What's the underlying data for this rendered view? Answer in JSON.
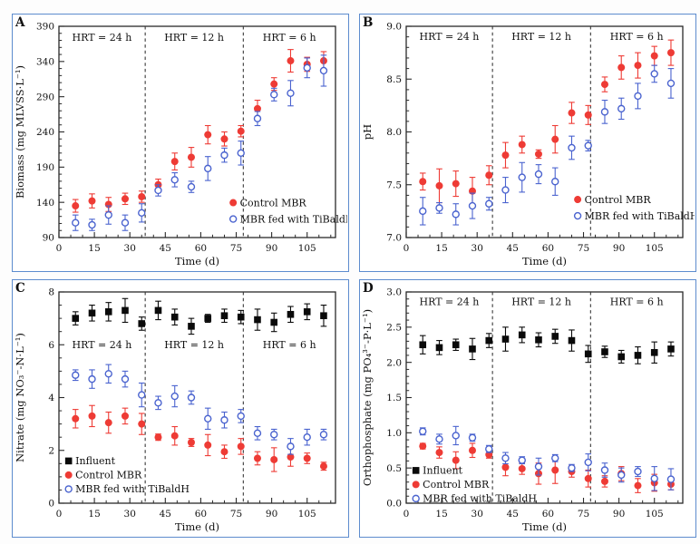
{
  "figure": {
    "panel_border_color": "#5d8cce",
    "panel_label_color": "#2f6cb5",
    "frame_color": "#2a2a2a",
    "divider_color": "#3a3a3a",
    "series_colors": {
      "influent": "#0a0a0a",
      "control": "#ee3b35",
      "tibaldh": "#4a63cf"
    },
    "x_days": [
      7,
      14,
      21,
      28,
      35,
      42,
      49,
      56,
      63,
      70,
      77,
      84,
      91,
      98,
      105,
      112
    ]
  },
  "chart_data": [
    {
      "type": "scatter",
      "panel_label": "A",
      "xlabel": "Time (d)",
      "ylabel": "Biomass (mg MLVSS·L⁻¹)",
      "xlim": [
        0,
        117
      ],
      "ylim": [
        90,
        390
      ],
      "xticks": [
        0,
        15,
        30,
        45,
        60,
        75,
        90,
        105
      ],
      "yticks": [
        90,
        140,
        190,
        240,
        290,
        340,
        390
      ],
      "xminor": 5,
      "yminor": 10,
      "ydecimals": 0,
      "grid": false,
      "section_dividers_x": [
        36.5,
        78
      ],
      "annotations": [
        {
          "text": "HRT = 24 h",
          "x": 18.2,
          "y": 374
        },
        {
          "text": "HRT = 12 h",
          "x": 57.2,
          "y": 374
        },
        {
          "text": "HRT = 6 h",
          "x": 97.5,
          "y": 374
        }
      ],
      "legend": {
        "fx": 0.63,
        "fy": 0.835,
        "spacing": 18
      },
      "series": [
        {
          "name": "Control MBR",
          "marker": "circle-filled",
          "color_key": "control",
          "y": [
            135,
            142,
            137,
            145,
            148,
            165,
            198,
            204,
            236,
            230,
            241,
            273,
            308,
            341,
            336,
            341
          ],
          "yerr": [
            9,
            10,
            10,
            8,
            8,
            8,
            12,
            14,
            13,
            10,
            8,
            12,
            9,
            16,
            10,
            13
          ]
        },
        {
          "name": "MBR fed with TiBaldH",
          "marker": "circle-open",
          "color_key": "tibaldh",
          "y": [
            111,
            108,
            122,
            111,
            125,
            157,
            172,
            162,
            188,
            207,
            210,
            259,
            293,
            295,
            331,
            327
          ],
          "yerr": [
            11,
            8,
            13,
            11,
            13,
            8,
            10,
            8,
            17,
            10,
            17,
            10,
            9,
            18,
            14,
            22
          ]
        }
      ]
    },
    {
      "type": "scatter",
      "panel_label": "B",
      "xlabel": "Time (d)",
      "ylabel": "pH",
      "xlim": [
        0,
        117
      ],
      "ylim": [
        7.0,
        9.0
      ],
      "xticks": [
        0,
        15,
        30,
        45,
        60,
        75,
        90,
        105
      ],
      "yticks": [
        7.0,
        7.5,
        8.0,
        8.5,
        9.0
      ],
      "xminor": 5,
      "yminor": 0.1,
      "ydecimals": 1,
      "grid": false,
      "section_dividers_x": [
        36.5,
        78
      ],
      "annotations": [
        {
          "text": "HRT = 24 h",
          "x": 18.2,
          "y": 8.9
        },
        {
          "text": "HRT = 12 h",
          "x": 57.2,
          "y": 8.9
        },
        {
          "text": "HRT = 6 h",
          "x": 97.5,
          "y": 8.9
        }
      ],
      "legend": {
        "fx": 0.62,
        "fy": 0.82,
        "spacing": 18
      },
      "series": [
        {
          "name": "Control MBR",
          "marker": "circle-filled",
          "color_key": "control",
          "y": [
            7.53,
            7.49,
            7.51,
            7.44,
            7.59,
            7.78,
            7.88,
            7.79,
            7.93,
            8.18,
            8.16,
            8.45,
            8.61,
            8.63,
            8.72,
            8.75
          ],
          "yerr": [
            0.08,
            0.16,
            0.12,
            0.13,
            0.09,
            0.12,
            0.08,
            0.04,
            0.13,
            0.1,
            0.09,
            0.07,
            0.11,
            0.12,
            0.09,
            0.12
          ]
        },
        {
          "name": "MBR fed with TiBaldH",
          "marker": "circle-open",
          "color_key": "tibaldh",
          "y": [
            7.25,
            7.28,
            7.22,
            7.3,
            7.32,
            7.45,
            7.57,
            7.6,
            7.53,
            7.85,
            7.87,
            8.19,
            8.22,
            8.34,
            8.55,
            8.46
          ],
          "yerr": [
            0.13,
            0.05,
            0.1,
            0.12,
            0.06,
            0.12,
            0.14,
            0.09,
            0.13,
            0.11,
            0.05,
            0.11,
            0.1,
            0.12,
            0.08,
            0.14
          ]
        }
      ]
    },
    {
      "type": "scatter",
      "panel_label": "C",
      "xlabel": "Time (d)",
      "ylabel": "Nitrate (mg NO₃⁻-N·L⁻¹)",
      "xlim": [
        0,
        117
      ],
      "ylim": [
        0,
        8
      ],
      "xticks": [
        0,
        15,
        30,
        45,
        60,
        75,
        90,
        105
      ],
      "yticks": [
        0,
        2,
        4,
        6,
        8
      ],
      "xminor": 5,
      "yminor": 0.5,
      "ydecimals": 0,
      "grid": false,
      "section_dividers_x": [
        36.5,
        78
      ],
      "annotations": [
        {
          "text": "HRT = 24 h",
          "x": 18.2,
          "y": 6.0
        },
        {
          "text": "HRT = 12 h",
          "x": 57.2,
          "y": 6.0
        },
        {
          "text": "HRT = 6 h",
          "x": 97.5,
          "y": 6.0
        }
      ],
      "legend": {
        "fx": 0.035,
        "fy": 0.8,
        "spacing": 15.5
      },
      "series": [
        {
          "name": "Influent",
          "marker": "square-filled",
          "color_key": "influent",
          "y": [
            7.0,
            7.2,
            7.25,
            7.3,
            6.8,
            7.3,
            7.05,
            6.7,
            7.0,
            7.1,
            7.05,
            6.95,
            6.85,
            7.15,
            7.25,
            7.1
          ],
          "yerr": [
            0.25,
            0.3,
            0.35,
            0.45,
            0.25,
            0.35,
            0.3,
            0.3,
            0.15,
            0.25,
            0.25,
            0.4,
            0.35,
            0.3,
            0.3,
            0.4
          ]
        },
        {
          "name": "Control MBR",
          "marker": "circle-filled",
          "color_key": "control",
          "y": [
            3.2,
            3.3,
            3.05,
            3.3,
            3.0,
            2.5,
            2.55,
            2.3,
            2.2,
            1.95,
            2.15,
            1.7,
            1.65,
            1.75,
            1.7,
            1.4
          ],
          "yerr": [
            0.35,
            0.4,
            0.4,
            0.3,
            0.4,
            0.12,
            0.35,
            0.15,
            0.4,
            0.25,
            0.3,
            0.25,
            0.45,
            0.35,
            0.2,
            0.15
          ]
        },
        {
          "name": "MBR fed with TiBaldH",
          "marker": "circle-open",
          "color_key": "tibaldh",
          "y": [
            4.85,
            4.7,
            4.9,
            4.7,
            4.1,
            3.8,
            4.05,
            4.0,
            3.2,
            3.15,
            3.3,
            2.65,
            2.6,
            2.15,
            2.5,
            2.6
          ],
          "yerr": [
            0.2,
            0.35,
            0.35,
            0.3,
            0.45,
            0.25,
            0.4,
            0.25,
            0.4,
            0.3,
            0.25,
            0.25,
            0.2,
            0.3,
            0.3,
            0.2
          ]
        }
      ]
    },
    {
      "type": "scatter",
      "panel_label": "D",
      "xlabel": "Time (d)",
      "ylabel": "Orthophosphate (mg PO₄³⁻-P·L⁻¹)",
      "xlim": [
        0,
        117
      ],
      "ylim": [
        0.0,
        3.0
      ],
      "xticks": [
        0,
        15,
        30,
        45,
        60,
        75,
        90,
        105
      ],
      "yticks": [
        0.0,
        0.5,
        1.0,
        1.5,
        2.0,
        2.5,
        3.0
      ],
      "xminor": 5,
      "yminor": 0.1,
      "ydecimals": 1,
      "grid": false,
      "section_dividers_x": [
        36.5,
        78
      ],
      "annotations": [
        {
          "text": "HRT = 24 h",
          "x": 18.2,
          "y": 2.86
        },
        {
          "text": "HRT = 12 h",
          "x": 57.2,
          "y": 2.86
        },
        {
          "text": "HRT = 6 h",
          "x": 97.5,
          "y": 2.86
        }
      ],
      "legend": {
        "fx": 0.035,
        "fy": 0.845,
        "spacing": 15.5
      },
      "series": [
        {
          "name": "Influent",
          "marker": "square-filled",
          "color_key": "influent",
          "y": [
            2.25,
            2.21,
            2.25,
            2.19,
            2.31,
            2.33,
            2.39,
            2.32,
            2.37,
            2.31,
            2.12,
            2.15,
            2.08,
            2.1,
            2.14,
            2.19
          ],
          "yerr": [
            0.13,
            0.1,
            0.08,
            0.15,
            0.1,
            0.17,
            0.11,
            0.1,
            0.1,
            0.15,
            0.12,
            0.08,
            0.09,
            0.12,
            0.15,
            0.1
          ]
        },
        {
          "name": "Control MBR",
          "marker": "circle-filled",
          "color_key": "control",
          "y": [
            0.81,
            0.72,
            0.61,
            0.75,
            0.69,
            0.51,
            0.49,
            0.42,
            0.47,
            0.45,
            0.35,
            0.31,
            0.42,
            0.25,
            0.29,
            0.27
          ],
          "yerr": [
            0.04,
            0.08,
            0.12,
            0.1,
            0.05,
            0.12,
            0.08,
            0.15,
            0.19,
            0.08,
            0.12,
            0.08,
            0.1,
            0.1,
            0.12,
            0.08
          ]
        },
        {
          "name": "MBR fed with TiBaldH",
          "marker": "circle-open",
          "color_key": "tibaldh",
          "y": [
            1.02,
            0.91,
            0.96,
            0.93,
            0.77,
            0.64,
            0.61,
            0.52,
            0.64,
            0.5,
            0.58,
            0.47,
            0.4,
            0.45,
            0.35,
            0.34
          ],
          "yerr": [
            0.05,
            0.07,
            0.13,
            0.05,
            0.05,
            0.08,
            0.05,
            0.12,
            0.05,
            0.05,
            0.12,
            0.1,
            0.1,
            0.07,
            0.17,
            0.15
          ]
        }
      ]
    }
  ]
}
